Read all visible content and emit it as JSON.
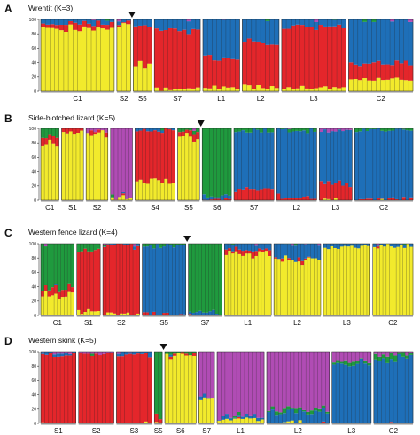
{
  "colors": {
    "yellow": "#f2ea2c",
    "red": "#e4262b",
    "blue": "#1e6fb8",
    "green": "#1f9a3e",
    "purple": "#b04cb4"
  },
  "chart_data": [
    {
      "type": "bar",
      "stacked": true,
      "label": "A",
      "title": "Wrentit (K=3)",
      "ylim": [
        0,
        100
      ],
      "yticks": [
        "0",
        "20",
        "40",
        "60",
        "80",
        "100"
      ],
      "marker_after_group": 1,
      "groups": [
        {
          "name": "C1",
          "n": 16,
          "base": {
            "yellow": 0.88,
            "red": 0.07,
            "blue": 0.05
          }
        },
        {
          "name": "S2",
          "n": 3,
          "base": {
            "yellow": 0.96,
            "red": 0.02,
            "blue": 0.02
          }
        },
        {
          "name": "S5",
          "n": 4,
          "base": {
            "red": 0.55,
            "yellow": 0.35,
            "blue": 0.1
          }
        },
        {
          "name": "S7",
          "n": 10,
          "base": {
            "red": 0.82,
            "blue": 0.14,
            "yellow": 0.04
          }
        },
        {
          "name": "L1",
          "n": 8,
          "base": {
            "blue": 0.55,
            "red": 0.4,
            "yellow": 0.05
          }
        },
        {
          "name": "L2",
          "n": 8,
          "base": {
            "red": 0.6,
            "blue": 0.34,
            "yellow": 0.06
          }
        },
        {
          "name": "L3",
          "n": 14,
          "base": {
            "red": 0.86,
            "blue": 0.1,
            "yellow": 0.04
          }
        },
        {
          "name": "C2",
          "n": 14,
          "base": {
            "blue": 0.62,
            "red": 0.22,
            "yellow": 0.16
          }
        }
      ]
    },
    {
      "type": "bar",
      "stacked": true,
      "label": "B",
      "title": "Side-blotched lizard (K=5)",
      "ylim": [
        0,
        100
      ],
      "yticks": [
        "0",
        "20",
        "40",
        "60",
        "80",
        "100"
      ],
      "marker_after_group": 5,
      "groups": [
        {
          "name": "C1",
          "n": 5,
          "base": {
            "yellow": 0.8,
            "red": 0.1,
            "green": 0.1
          }
        },
        {
          "name": "S1",
          "n": 6,
          "base": {
            "yellow": 0.95,
            "red": 0.05
          }
        },
        {
          "name": "S2",
          "n": 6,
          "base": {
            "yellow": 0.94,
            "red": 0.03,
            "purple": 0.03
          }
        },
        {
          "name": "S3",
          "n": 6,
          "base": {
            "purple": 0.96,
            "yellow": 0.04
          }
        },
        {
          "name": "S4",
          "n": 11,
          "base": {
            "red": 0.72,
            "yellow": 0.26,
            "blue": 0.02
          }
        },
        {
          "name": "S5",
          "n": 6,
          "base": {
            "yellow": 0.9,
            "red": 0.08,
            "green": 0.02
          }
        },
        {
          "name": "S6",
          "n": 8,
          "base": {
            "green": 0.93,
            "blue": 0.05,
            "red": 0.02
          }
        },
        {
          "name": "S7",
          "n": 11,
          "base": {
            "blue": 0.82,
            "red": 0.15,
            "green": 0.03
          }
        },
        {
          "name": "L2",
          "n": 11,
          "base": {
            "blue": 0.92,
            "red": 0.05,
            "green": 0.03
          }
        },
        {
          "name": "L3",
          "n": 9,
          "base": {
            "blue": 0.74,
            "red": 0.22,
            "purple": 0.04
          }
        },
        {
          "name": "C2",
          "n": 16,
          "base": {
            "blue": 0.96,
            "red": 0.02,
            "green": 0.02
          }
        }
      ]
    },
    {
      "type": "bar",
      "stacked": true,
      "label": "C",
      "title": "Western fence lizard (K=4)",
      "ylim": [
        0,
        100
      ],
      "yticks": [
        "0",
        "20",
        "40",
        "60",
        "80",
        "100"
      ],
      "marker_after_group": 3,
      "groups": [
        {
          "name": "C1",
          "n": 10,
          "base": {
            "green": 0.62,
            "yellow": 0.28,
            "red": 0.1
          }
        },
        {
          "name": "S1",
          "n": 7,
          "base": {
            "red": 0.85,
            "green": 0.1,
            "yellow": 0.05
          }
        },
        {
          "name": "S2",
          "n": 11,
          "base": {
            "red": 0.97,
            "yellow": 0.02,
            "blue": 0.01
          }
        },
        {
          "name": "S5",
          "n": 13,
          "base": {
            "blue": 0.95,
            "green": 0.03,
            "red": 0.02
          }
        },
        {
          "name": "S7",
          "n": 10,
          "base": {
            "green": 0.96,
            "blue": 0.04
          }
        },
        {
          "name": "L1",
          "n": 14,
          "base": {
            "yellow": 0.86,
            "blue": 0.08,
            "red": 0.06
          }
        },
        {
          "name": "L2",
          "n": 14,
          "base": {
            "yellow": 0.78,
            "blue": 0.2,
            "red": 0.02
          }
        },
        {
          "name": "L3",
          "n": 14,
          "base": {
            "yellow": 0.96,
            "blue": 0.04
          }
        },
        {
          "name": "C2",
          "n": 12,
          "base": {
            "yellow": 0.97,
            "blue": 0.03
          }
        }
      ]
    },
    {
      "type": "bar",
      "stacked": true,
      "label": "D",
      "title": "Western skink (K=5)",
      "ylim": [
        0,
        100
      ],
      "yticks": [
        "0",
        "20",
        "40",
        "60",
        "80",
        "100"
      ],
      "marker_after_group": 3,
      "groups": [
        {
          "name": "S1",
          "n": 9,
          "base": {
            "red": 0.95,
            "blue": 0.03,
            "purple": 0.02
          }
        },
        {
          "name": "S2",
          "n": 9,
          "base": {
            "red": 0.96,
            "purple": 0.04
          }
        },
        {
          "name": "S3",
          "n": 9,
          "base": {
            "red": 0.95,
            "blue": 0.05
          }
        },
        {
          "name": "S5",
          "n": 2,
          "base": {
            "green": 0.92,
            "red": 0.08
          }
        },
        {
          "name": "S6",
          "n": 8,
          "base": {
            "yellow": 0.96,
            "red": 0.02,
            "green": 0.02
          }
        },
        {
          "name": "S7",
          "n": 4,
          "base": {
            "purple": 0.58,
            "yellow": 0.4,
            "blue": 0.02
          }
        },
        {
          "name": "L1",
          "n": 12,
          "base": {
            "purple": 0.9,
            "yellow": 0.06,
            "blue": 0.04
          }
        },
        {
          "name": "L2",
          "n": 16,
          "base": {
            "purple": 0.8,
            "blue": 0.16,
            "green": 0.04
          }
        },
        {
          "name": "L3",
          "n": 10,
          "base": {
            "blue": 0.84,
            "purple": 0.12,
            "green": 0.04
          }
        },
        {
          "name": "C2",
          "n": 10,
          "base": {
            "blue": 0.9,
            "green": 0.06,
            "purple": 0.04
          }
        }
      ]
    }
  ]
}
